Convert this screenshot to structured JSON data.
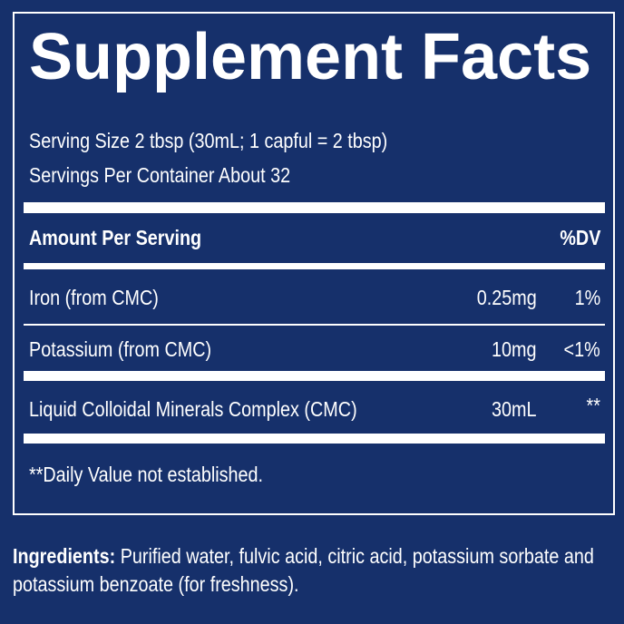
{
  "title": "Supplement Facts",
  "serving_size": "Serving Size 2 tbsp (30mL; 1 capful = 2 tbsp)",
  "servings_per_container": "Servings Per Container About 32",
  "header": {
    "amount_label": "Amount Per Serving",
    "dv_label": "%DV"
  },
  "nutrients": [
    {
      "name": "Iron (from CMC)",
      "amount": "0.25mg",
      "dv": "1%"
    },
    {
      "name": "Potassium (from CMC)",
      "amount": "10mg",
      "dv": "<1%"
    },
    {
      "name": "Liquid Colloidal Minerals Complex (CMC)",
      "amount": "30mL",
      "dv": "**"
    }
  ],
  "footnote": "**Daily Value not established.",
  "ingredients": {
    "label": "Ingredients:",
    "text": " Purified water, fulvic acid, citric acid, potassium sorbate and potassium benzoate (for freshness)."
  },
  "colors": {
    "background": "#16306b",
    "foreground": "#ffffff"
  }
}
